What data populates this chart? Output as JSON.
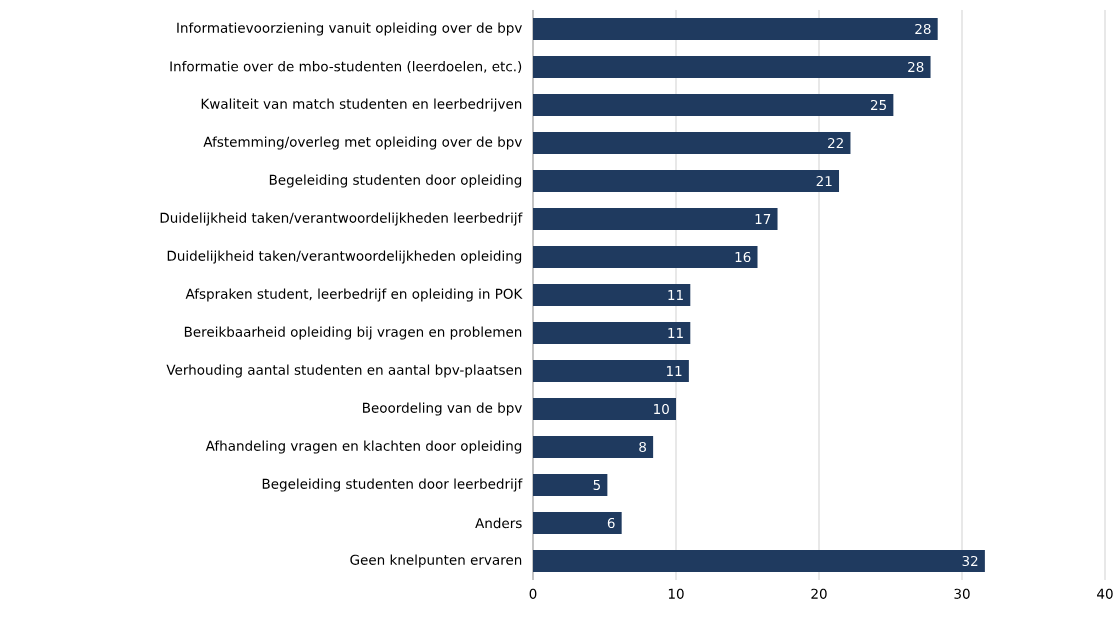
{
  "chart_data": {
    "type": "bar",
    "orientation": "horizontal",
    "categories": [
      "Informatievoorziening vanuit opleiding over de bpv",
      "Informatie over de mbo-studenten (leerdoelen, etc.)",
      "Kwaliteit van match studenten en leerbedrijven",
      "Afstemming/overleg met opleiding over de bpv",
      "Begeleiding studenten door opleiding",
      "Duidelijkheid taken/verantwoordelijkheden leerbedrijf",
      "Duidelijkheid taken/verantwoordelijkheden opleiding",
      "Afspraken student, leerbedrijf en opleiding in POK",
      "Bereikbaarheid opleiding bij vragen en problemen",
      "Verhouding aantal studenten en aantal bpv-plaatsen",
      "Beoordeling van de bpv",
      "Afhandeling vragen en klachten door opleiding",
      "Begeleiding studenten door leerbedrijf",
      "Anders",
      "Geen knelpunten ervaren"
    ],
    "values": [
      28.3,
      27.8,
      25.2,
      22.2,
      21.4,
      17.1,
      15.7,
      11.0,
      11.0,
      10.9,
      10.0,
      8.4,
      5.2,
      6.2,
      31.6
    ],
    "value_labels": [
      "28",
      "28",
      "25",
      "22",
      "21",
      "17",
      "16",
      "11",
      "11",
      "11",
      "10",
      "8",
      "5",
      "6",
      "32"
    ],
    "color": "#1f3a5f",
    "xlim": [
      0,
      40
    ],
    "xticks": [
      0,
      10,
      20,
      30,
      40
    ],
    "grid": "x"
  }
}
